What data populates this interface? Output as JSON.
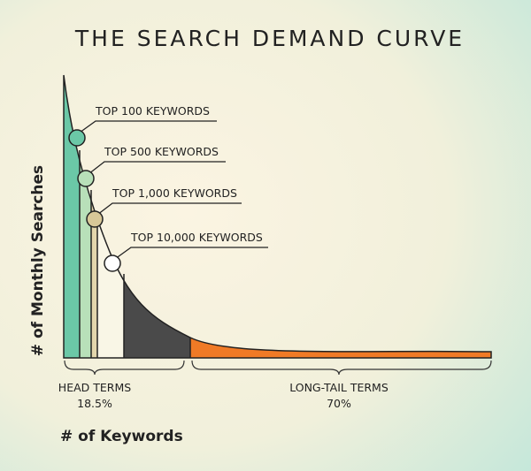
{
  "title": "THE SEARCH DEMAND CURVE",
  "y_axis_label": "# of Monthly Searches",
  "x_axis_label": "# of Keywords",
  "callouts": [
    {
      "label": "TOP 100 KEYWORDS"
    },
    {
      "label": "TOP 500 KEYWORDS"
    },
    {
      "label": "TOP 1,000 KEYWORDS"
    },
    {
      "label": "TOP 10,000 KEYWORDS"
    }
  ],
  "brackets": [
    {
      "label": "HEAD TERMS",
      "share": "18.5%"
    },
    {
      "label": "LONG-TAIL TERMS",
      "share": "70%"
    }
  ]
}
